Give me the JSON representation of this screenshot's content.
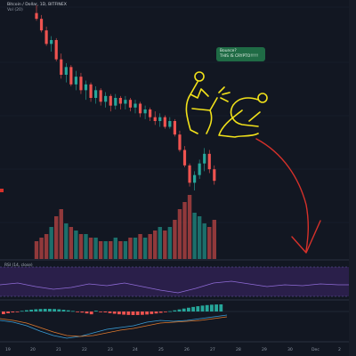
{
  "header": {
    "symbol_line": "Bitcoin / Dollar, 1D, BITFINEX",
    "volume_line": "Vol (20)"
  },
  "annotation": {
    "bubble_line1": "Bounce?",
    "bubble_line2": "THIS IS CRYPTO!!!!!"
  },
  "rsi": {
    "label": "RSI (14, close)"
  },
  "x_axis": {
    "labels": [
      "19",
      "20",
      "21",
      "22",
      "23",
      "24",
      "25",
      "26",
      "27",
      "28",
      "29",
      "30",
      "Dec",
      "2"
    ]
  },
  "colors": {
    "background": "#121722",
    "up": "#26a69a",
    "down": "#ef5350",
    "rsi_band": "#2a1f4a",
    "drawing": "#f2e21a",
    "arrow": "#d6312a"
  },
  "chart_data": {
    "type": "candlestick",
    "candles": [
      {
        "o": 100,
        "h": 104,
        "l": 96,
        "c": 97
      },
      {
        "o": 97,
        "h": 99,
        "l": 90,
        "c": 91
      },
      {
        "o": 91,
        "h": 93,
        "l": 83,
        "c": 84
      },
      {
        "o": 84,
        "h": 88,
        "l": 80,
        "c": 86
      },
      {
        "o": 86,
        "h": 87,
        "l": 75,
        "c": 76
      },
      {
        "o": 76,
        "h": 79,
        "l": 66,
        "c": 68
      },
      {
        "o": 68,
        "h": 74,
        "l": 64,
        "c": 72
      },
      {
        "o": 72,
        "h": 73,
        "l": 62,
        "c": 63
      },
      {
        "o": 63,
        "h": 70,
        "l": 60,
        "c": 67
      },
      {
        "o": 67,
        "h": 69,
        "l": 58,
        "c": 60
      },
      {
        "o": 60,
        "h": 65,
        "l": 55,
        "c": 63
      },
      {
        "o": 63,
        "h": 64,
        "l": 54,
        "c": 56
      },
      {
        "o": 56,
        "h": 62,
        "l": 53,
        "c": 60
      },
      {
        "o": 60,
        "h": 61,
        "l": 52,
        "c": 54
      },
      {
        "o": 54,
        "h": 59,
        "l": 51,
        "c": 57
      },
      {
        "o": 57,
        "h": 58,
        "l": 49,
        "c": 52
      },
      {
        "o": 52,
        "h": 58,
        "l": 50,
        "c": 56
      },
      {
        "o": 56,
        "h": 57,
        "l": 50,
        "c": 53
      },
      {
        "o": 53,
        "h": 57,
        "l": 50,
        "c": 55
      },
      {
        "o": 55,
        "h": 56,
        "l": 49,
        "c": 51
      },
      {
        "o": 51,
        "h": 55,
        "l": 48,
        "c": 53
      },
      {
        "o": 53,
        "h": 54,
        "l": 46,
        "c": 48
      },
      {
        "o": 48,
        "h": 52,
        "l": 45,
        "c": 50
      },
      {
        "o": 50,
        "h": 51,
        "l": 44,
        "c": 46
      },
      {
        "o": 46,
        "h": 49,
        "l": 42,
        "c": 44
      },
      {
        "o": 44,
        "h": 48,
        "l": 41,
        "c": 46
      },
      {
        "o": 46,
        "h": 47,
        "l": 40,
        "c": 41
      },
      {
        "o": 41,
        "h": 46,
        "l": 40,
        "c": 44
      },
      {
        "o": 44,
        "h": 45,
        "l": 36,
        "c": 37
      },
      {
        "o": 37,
        "h": 39,
        "l": 28,
        "c": 29
      },
      {
        "o": 29,
        "h": 31,
        "l": 20,
        "c": 21
      },
      {
        "o": 21,
        "h": 22,
        "l": 10,
        "c": 12
      },
      {
        "o": 12,
        "h": 18,
        "l": 8,
        "c": 16
      },
      {
        "o": 16,
        "h": 24,
        "l": 14,
        "c": 22
      },
      {
        "o": 22,
        "h": 30,
        "l": 18,
        "c": 27
      },
      {
        "o": 27,
        "h": 29,
        "l": 17,
        "c": 19
      },
      {
        "o": 19,
        "h": 21,
        "l": 11,
        "c": 13
      }
    ],
    "volume": [
      5,
      6,
      7,
      9,
      12,
      14,
      10,
      9,
      8,
      7,
      7,
      6,
      6,
      5,
      5,
      5,
      6,
      5,
      5,
      6,
      6,
      7,
      6,
      7,
      8,
      9,
      8,
      9,
      11,
      14,
      16,
      18,
      13,
      12,
      10,
      9,
      11
    ]
  }
}
